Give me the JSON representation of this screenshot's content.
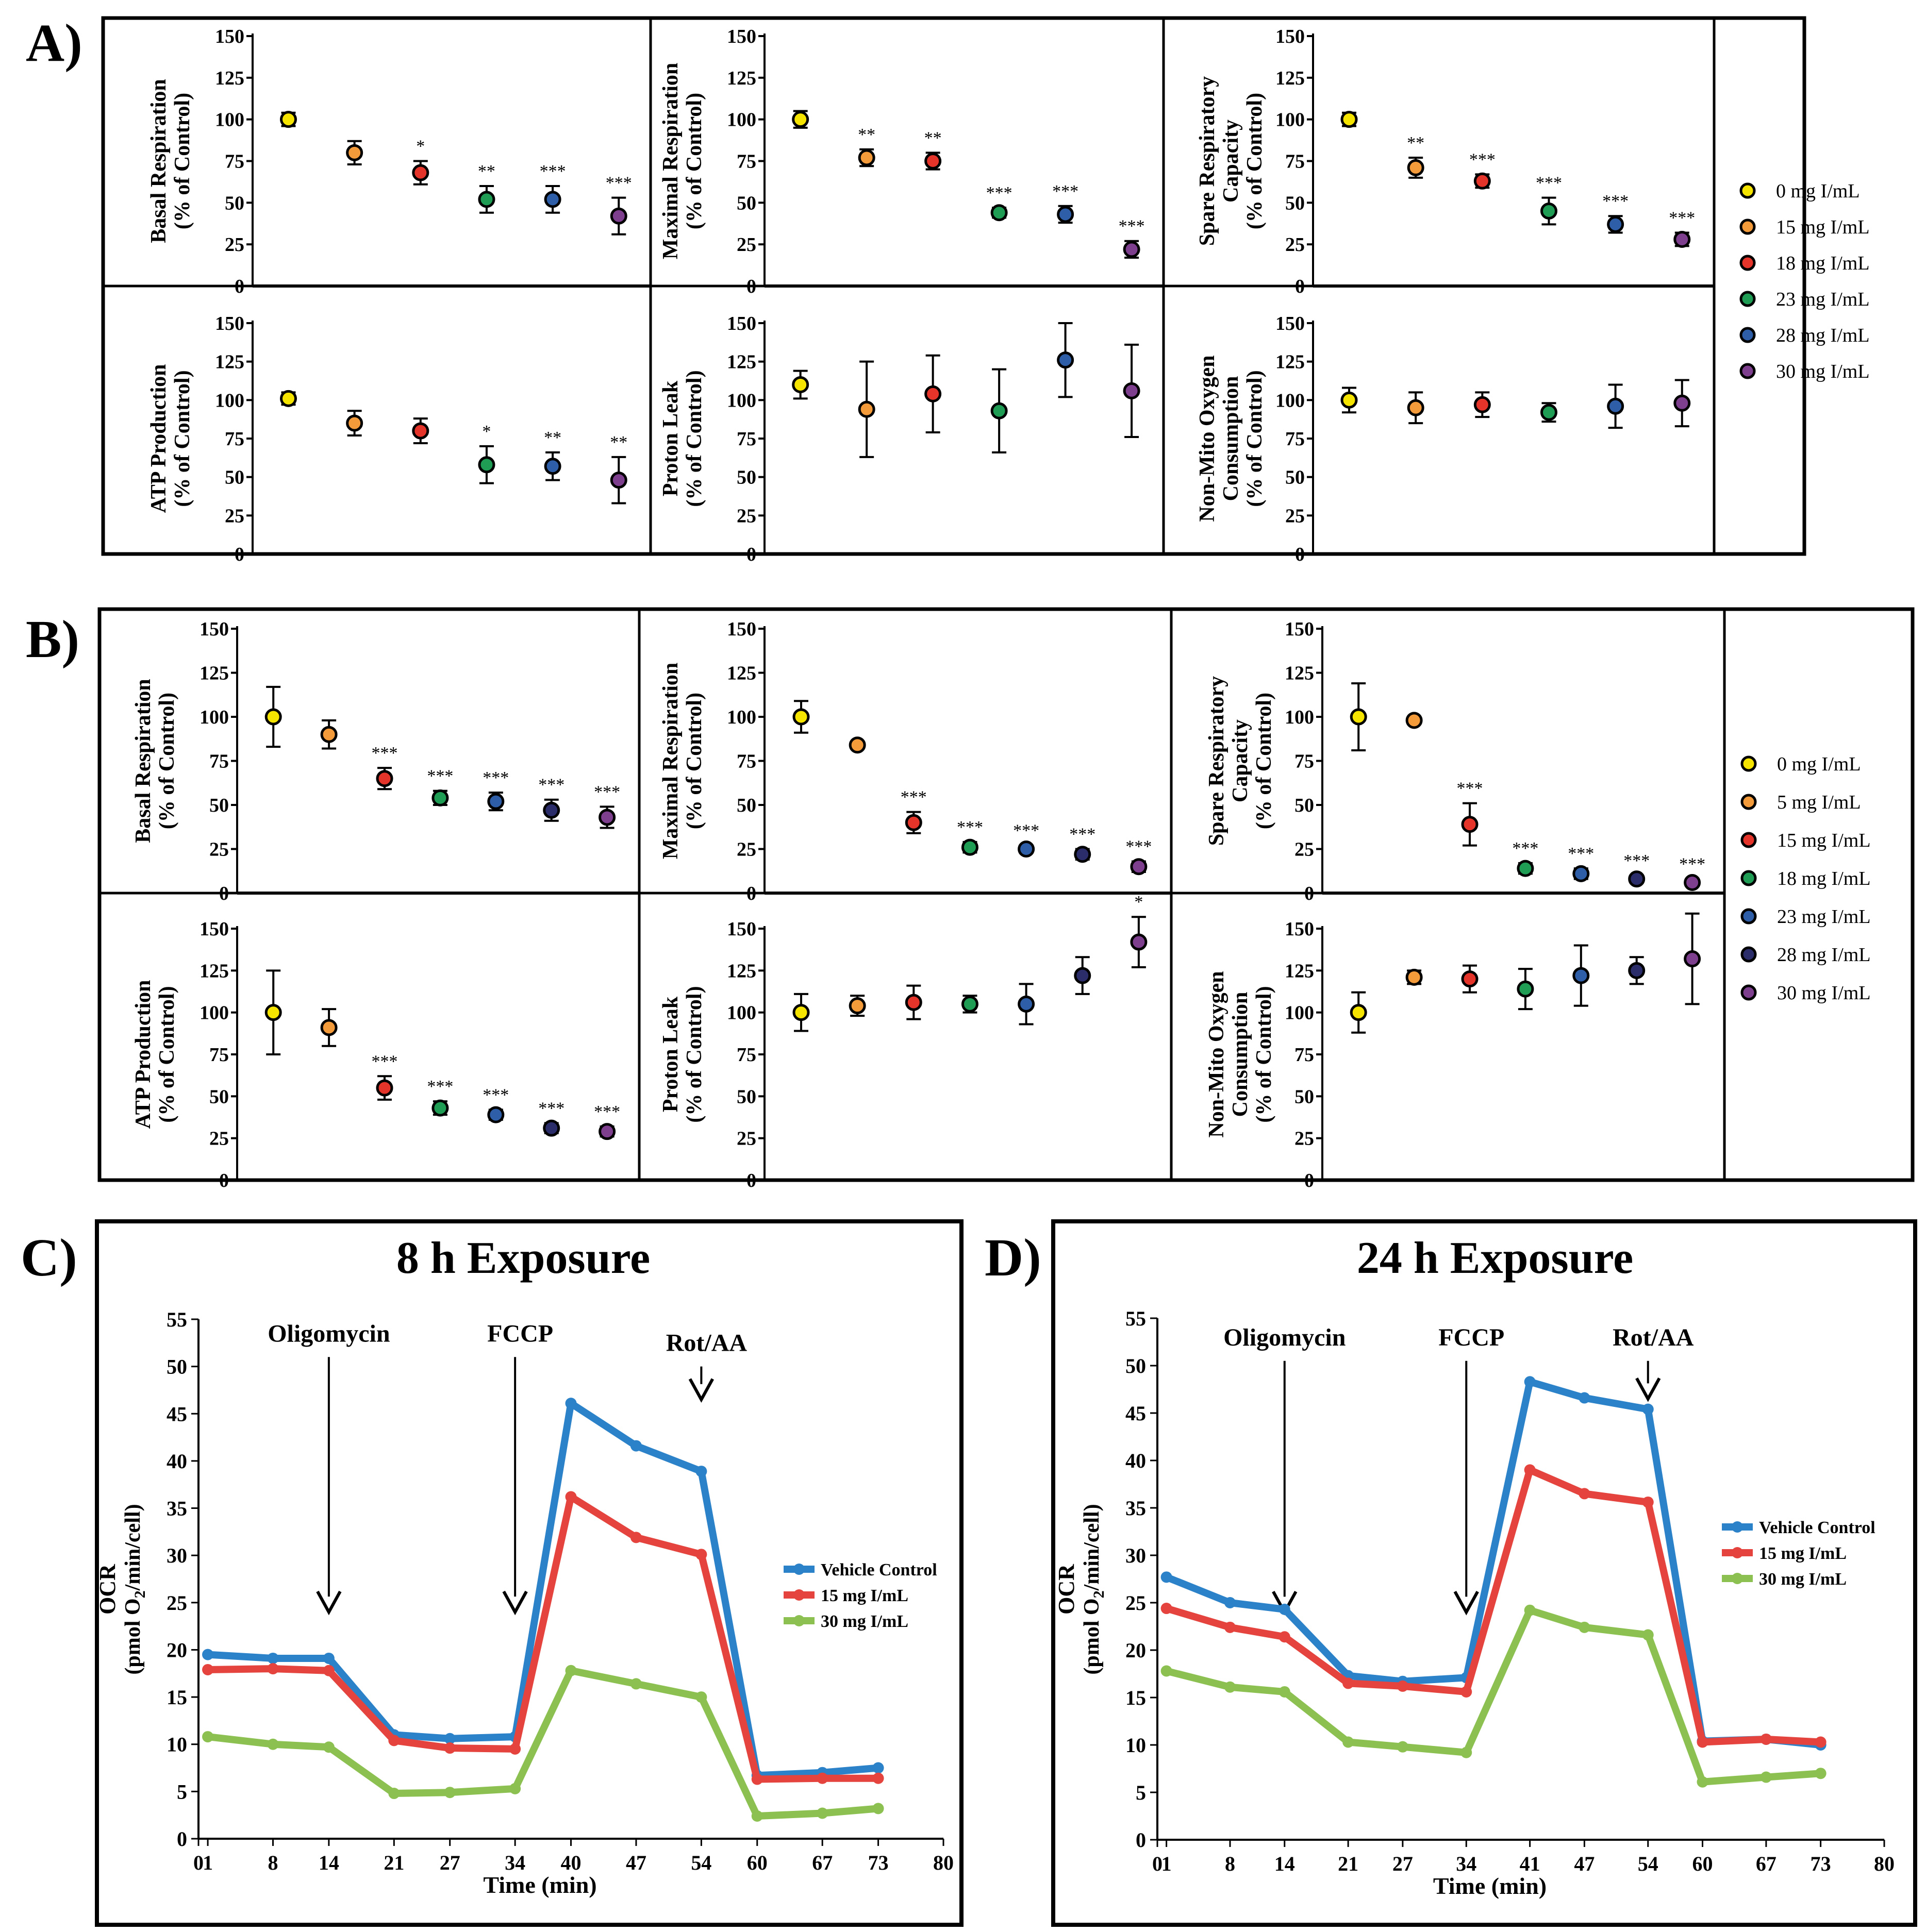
{
  "figure_panels": {
    "A": {
      "tag": "A)"
    },
    "B": {
      "tag": "B)"
    },
    "C": {
      "tag": "C)"
    },
    "D": {
      "tag": "D)"
    }
  },
  "colors": {
    "dose_0": "#f5e300",
    "dose_5": "#f39a3b",
    "dose_15_A": "#f39a3b",
    "dose_15_B": "#e5352b",
    "dose_18_A": "#e5352b",
    "dose_18_B": "#1f9d55",
    "dose_23_A": "#1f9d55",
    "dose_23_B": "#2f5ea8",
    "dose_28_A": "#2f5ea8",
    "dose_28_B": "#2b2d6b",
    "dose_30": "#7e3f8f",
    "vehicle": "#2b82c9",
    "mg15": "#e4443d",
    "mg30": "#8cc152"
  },
  "chart_data": [
    {
      "id": "A",
      "type": "scatter",
      "ylim": [
        0,
        150
      ],
      "yticks": [
        "0",
        "25",
        "50",
        "75",
        "100",
        "125",
        "150"
      ],
      "legend": [
        "0 mg I/mL",
        "15 mg I/mL",
        "18 mg I/mL",
        "23 mg I/mL",
        "28 mg I/mL",
        "30 mg I/mL"
      ],
      "legend_colors": [
        "dose_0",
        "dose_15_A",
        "dose_18_A",
        "dose_23_A",
        "dose_28_A",
        "dose_30"
      ],
      "subplots": [
        {
          "ylabel": [
            "Basal Respiration",
            "(% of Control)"
          ],
          "values": [
            100,
            80,
            68,
            52,
            52,
            42
          ],
          "err": [
            4,
            7,
            7,
            8,
            8,
            11
          ],
          "sig": [
            "",
            "",
            "*",
            "**",
            "***",
            "***"
          ]
        },
        {
          "ylabel": [
            "Maximal Respiration",
            "(% of Control)"
          ],
          "values": [
            100,
            77,
            75,
            44,
            43,
            22
          ],
          "err": [
            5,
            5,
            5,
            3,
            5,
            5
          ],
          "sig": [
            "",
            "**",
            "**",
            "***",
            "***",
            "***"
          ]
        },
        {
          "ylabel": [
            "Spare Respiratory",
            "Capacity",
            "(% of Control)"
          ],
          "values": [
            100,
            71,
            63,
            45,
            37,
            28
          ],
          "err": [
            4,
            6,
            4,
            8,
            5,
            4
          ],
          "sig": [
            "",
            "**",
            "***",
            "***",
            "***",
            "***"
          ]
        },
        {
          "ylabel": [
            "ATP Production",
            "(% of Control)"
          ],
          "values": [
            101,
            85,
            80,
            58,
            57,
            48
          ],
          "err": [
            4,
            8,
            8,
            12,
            9,
            15
          ],
          "sig": [
            "",
            "",
            "",
            "*",
            "**",
            "**"
          ]
        },
        {
          "ylabel": [
            "Proton Leak",
            "(% of  Control)"
          ],
          "values": [
            110,
            94,
            104,
            93,
            126,
            106
          ],
          "err": [
            9,
            31,
            25,
            27,
            24,
            30
          ],
          "sig": [
            "",
            "",
            "",
            "",
            "",
            ""
          ]
        },
        {
          "ylabel": [
            "Non-Mito Oxygen",
            "Consumption",
            "(% of Control)"
          ],
          "values": [
            100,
            95,
            97,
            92,
            96,
            98
          ],
          "err": [
            8,
            10,
            8,
            6,
            14,
            15
          ],
          "sig": [
            "",
            "",
            "",
            "",
            "",
            ""
          ]
        }
      ]
    },
    {
      "id": "B",
      "type": "scatter",
      "ylim": [
        0,
        150
      ],
      "yticks": [
        "0",
        "25",
        "50",
        "75",
        "100",
        "125",
        "150"
      ],
      "legend": [
        "0 mg I/mL",
        "5 mg I/mL",
        "15 mg I/mL",
        "18 mg I/mL",
        "23 mg I/mL",
        "28 mg I/mL",
        "30 mg I/mL"
      ],
      "legend_colors": [
        "dose_0",
        "dose_5",
        "dose_15_B",
        "dose_18_B",
        "dose_23_B",
        "dose_28_B",
        "dose_30"
      ],
      "subplots": [
        {
          "ylabel": [
            "Basal Respiration",
            "(% of Control)"
          ],
          "values": [
            100,
            90,
            65,
            54,
            52,
            47,
            43
          ],
          "err": [
            17,
            8,
            6,
            4,
            5,
            6,
            6
          ],
          "sig": [
            "",
            "",
            "***",
            "***",
            "***",
            "***",
            "***"
          ]
        },
        {
          "ylabel": [
            "Maximal Respiration",
            "(% of Control)"
          ],
          "values": [
            100,
            84,
            40,
            26,
            25,
            22,
            15
          ],
          "err": [
            9,
            2,
            6,
            3,
            2,
            3,
            3
          ],
          "sig": [
            "",
            "",
            "***",
            "***",
            "***",
            "***",
            "***"
          ]
        },
        {
          "ylabel": [
            "Spare Respiratory",
            "Capacity",
            "(% of Control)"
          ],
          "values": [
            100,
            98,
            39,
            14,
            11,
            8,
            6
          ],
          "err": [
            19,
            2,
            12,
            3,
            3,
            2,
            2
          ],
          "sig": [
            "",
            "",
            "***",
            "***",
            "***",
            "***",
            "***"
          ]
        },
        {
          "ylabel": [
            "ATP Production",
            "(% of Control)"
          ],
          "values": [
            100,
            91,
            55,
            43,
            39,
            31,
            29
          ],
          "err": [
            25,
            11,
            7,
            4,
            3,
            3,
            3
          ],
          "sig": [
            "",
            "",
            "***",
            "***",
            "***",
            "***",
            "***"
          ]
        },
        {
          "ylabel": [
            "Proton Leak",
            "(% of  Control)"
          ],
          "values": [
            100,
            104,
            106,
            105,
            105,
            122,
            142
          ],
          "err": [
            11,
            6,
            10,
            5,
            12,
            11,
            15
          ],
          "sig": [
            "",
            "",
            "",
            "",
            "",
            "",
            "*"
          ]
        },
        {
          "ylabel": [
            "Non-Mito Oxygen",
            "Consumption",
            "(% of Control)"
          ],
          "values": [
            100,
            121,
            120,
            114,
            122,
            125,
            132
          ],
          "err": [
            12,
            4,
            8,
            12,
            18,
            8,
            27
          ],
          "sig": [
            "",
            "",
            "",
            "",
            "",
            "",
            ""
          ]
        }
      ]
    },
    {
      "id": "C",
      "type": "line",
      "title": "8 h Exposure",
      "xlabel": "Time (min)",
      "ylabel": "OCR",
      "ylabel2": "(pmol O",
      "ylabel_sub": "2",
      "ylabel3": "/min/cell)",
      "xlim": [
        0,
        80
      ],
      "ylim": [
        0,
        55
      ],
      "xticks": [
        0,
        1,
        8,
        14,
        21,
        27,
        34,
        40,
        47,
        54,
        60,
        67,
        73,
        80
      ],
      "yticks": [
        0,
        5,
        10,
        15,
        20,
        25,
        30,
        35,
        40,
        45,
        50,
        55
      ],
      "x": [
        1,
        8,
        14,
        21,
        27,
        34,
        40,
        47,
        54,
        60,
        67,
        73
      ],
      "annotations": [
        {
          "label": "Oligomycin",
          "x": 14,
          "y_top": 51,
          "y_end": 24
        },
        {
          "label": "FCCP",
          "x": 34,
          "y_top": 51,
          "y_end": 24
        },
        {
          "label": "Rot/AA",
          "x": 54,
          "y_top": 50,
          "y_end": 46.5
        }
      ],
      "series": [
        {
          "name": "Vehicle Control",
          "color": "vehicle",
          "values": [
            19.5,
            19.1,
            19.1,
            11.0,
            10.6,
            10.8,
            46.1,
            41.6,
            38.9,
            6.7,
            7.0,
            7.5
          ]
        },
        {
          "name": "15 mg I/mL",
          "color": "mg15",
          "values": [
            17.9,
            18.0,
            17.8,
            10.4,
            9.6,
            9.5,
            36.2,
            31.9,
            30.1,
            6.3,
            6.4,
            6.4
          ]
        },
        {
          "name": "30 mg I/mL",
          "color": "mg30",
          "values": [
            10.8,
            10.0,
            9.7,
            4.8,
            4.9,
            5.3,
            17.8,
            16.4,
            15.0,
            2.4,
            2.7,
            3.2
          ]
        }
      ]
    },
    {
      "id": "D",
      "type": "line",
      "title": "24 h Exposure",
      "xlabel": "Time (min)",
      "ylabel": "OCR",
      "ylabel2": "(pmol O",
      "ylabel_sub": "2",
      "ylabel3": "/min/cell)",
      "xlim": [
        0,
        80
      ],
      "ylim": [
        0,
        55
      ],
      "xticks": [
        0,
        1,
        8,
        14,
        21,
        27,
        34,
        41,
        47,
        54,
        60,
        67,
        73,
        80
      ],
      "yticks": [
        0,
        5,
        10,
        15,
        20,
        25,
        30,
        35,
        40,
        45,
        50,
        55
      ],
      "x": [
        1,
        8,
        14,
        21,
        27,
        34,
        41,
        47,
        54,
        60,
        67,
        73
      ],
      "annotations": [
        {
          "label": "Oligomycin",
          "x": 14,
          "y_top": 50.5,
          "y_end": 24
        },
        {
          "label": "FCCP",
          "x": 34,
          "y_top": 50.5,
          "y_end": 24
        },
        {
          "label": "Rot/AA",
          "x": 54,
          "y_top": 50.5,
          "y_end": 46.5
        }
      ],
      "series": [
        {
          "name": "Vehicle Control",
          "color": "vehicle",
          "values": [
            27.7,
            25.0,
            24.3,
            17.3,
            16.7,
            17.1,
            48.3,
            46.6,
            45.4,
            10.4,
            10.6,
            10.0
          ]
        },
        {
          "name": "15 mg I/mL",
          "color": "mg15",
          "values": [
            24.4,
            22.4,
            21.4,
            16.5,
            16.2,
            15.6,
            39.0,
            36.5,
            35.6,
            10.3,
            10.6,
            10.3
          ]
        },
        {
          "name": "30 mg I/mL",
          "color": "mg30",
          "values": [
            17.8,
            16.1,
            15.6,
            10.3,
            9.8,
            9.2,
            24.2,
            22.4,
            21.6,
            6.1,
            6.6,
            7.0
          ]
        }
      ]
    }
  ]
}
